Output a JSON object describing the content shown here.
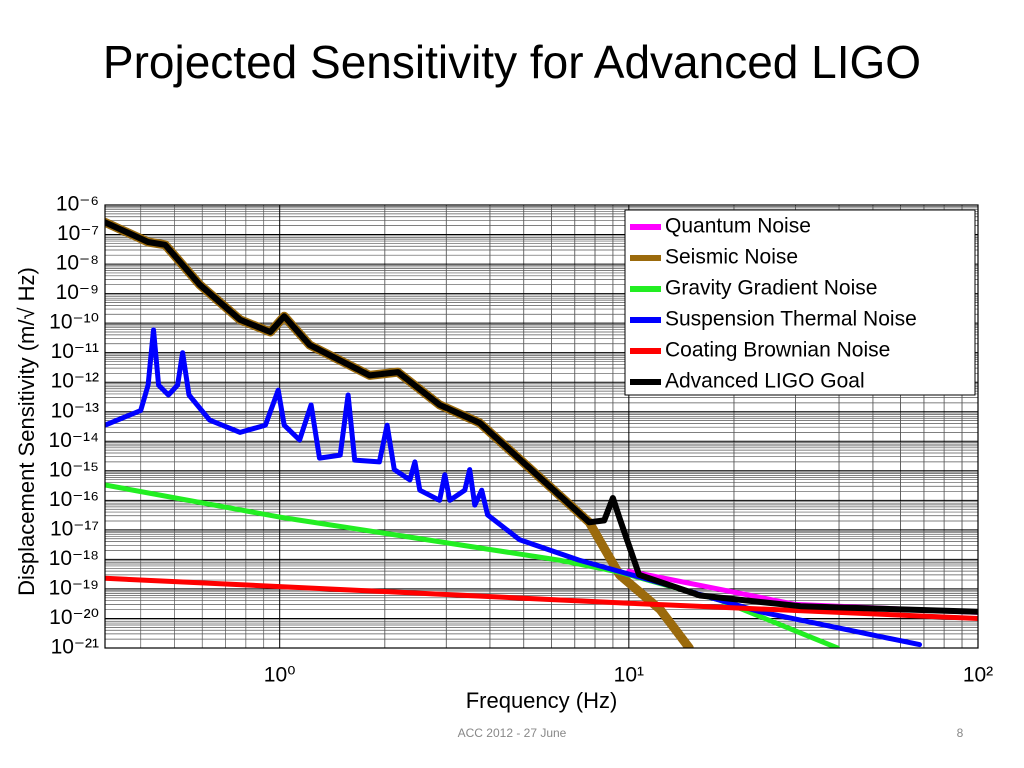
{
  "slide": {
    "title": "Projected Sensitivity for Advanced LIGO",
    "footer": "ACC 2012 - 27 June",
    "page_number": "8"
  },
  "chart_data": {
    "type": "line",
    "xlabel": "Frequency (Hz)",
    "ylabel": "Displacement Sensitivity (m/√ Hz)",
    "xscale": "log",
    "yscale": "log",
    "grid": true,
    "legend": "upper right",
    "xlim": [
      0.316,
      100
    ],
    "ylim": [
      1e-21,
      1e-06
    ],
    "xticks": [
      {
        "value": 1,
        "label": "10⁰"
      },
      {
        "value": 10,
        "label": "10¹"
      },
      {
        "value": 100,
        "label": "10²"
      }
    ],
    "yticks": [
      {
        "value": 1e-21,
        "label": "10⁻²¹"
      },
      {
        "value": 1e-20,
        "label": "10⁻²⁰"
      },
      {
        "value": 1e-19,
        "label": "10⁻¹⁹"
      },
      {
        "value": 1e-18,
        "label": "10⁻¹⁸"
      },
      {
        "value": 1e-17,
        "label": "10⁻¹⁷"
      },
      {
        "value": 1e-16,
        "label": "10⁻¹⁶"
      },
      {
        "value": 1e-15,
        "label": "10⁻¹⁵"
      },
      {
        "value": 1e-14,
        "label": "10⁻¹⁴"
      },
      {
        "value": 1e-13,
        "label": "10⁻¹³"
      },
      {
        "value": 1e-12,
        "label": "10⁻¹²"
      },
      {
        "value": 1e-11,
        "label": "10⁻¹¹"
      },
      {
        "value": 1e-10,
        "label": "10⁻¹⁰"
      },
      {
        "value": 1e-09,
        "label": "10⁻⁹"
      },
      {
        "value": 1e-08,
        "label": "10⁻⁸"
      },
      {
        "value": 1e-07,
        "label": "10⁻⁷"
      },
      {
        "value": 1e-06,
        "label": "10⁻⁶"
      }
    ],
    "series": [
      {
        "name": "Quantum Noise",
        "color": "#ff00ff",
        "x": [
          10,
          30,
          100
        ],
        "values": [
          4e-19,
          3e-20,
          1.6e-20
        ]
      },
      {
        "name": "Seismic Noise",
        "color": "#9b6a0c",
        "x": [
          0.316,
          0.42,
          0.47,
          0.59,
          0.77,
          0.94,
          1.03,
          1.22,
          1.81,
          2.18,
          2.87,
          3.74,
          7.7,
          9.4,
          12.3,
          14.9
        ],
        "values": [
          2.6e-07,
          5.6e-08,
          4.5e-08,
          2e-09,
          1.3e-10,
          5e-11,
          1.7e-10,
          1.8e-11,
          1.7e-12,
          2.2e-12,
          1.7e-13,
          4.2e-14,
          1.8e-17,
          3e-19,
          2e-20,
          1e-21
        ]
      },
      {
        "name": "Gravity Gradient Noise",
        "color": "#22ee22",
        "x": [
          0.316,
          1,
          6.3,
          9.4,
          18.2,
          39.6
        ],
        "values": [
          3.3e-16,
          2.7e-17,
          9.5e-19,
          3.7e-19,
          4.2e-20,
          1e-21
        ]
      },
      {
        "name": "Suspension Thermal Noise",
        "color": "#0000ff",
        "x": [
          0.316,
          0.4,
          0.42,
          0.435,
          0.45,
          0.48,
          0.51,
          0.527,
          0.55,
          0.63,
          0.77,
          0.91,
          0.99,
          1.03,
          1.14,
          1.23,
          1.3,
          1.49,
          1.57,
          1.64,
          1.93,
          2.03,
          2.13,
          2.36,
          2.44,
          2.52,
          2.87,
          2.97,
          3.07,
          3.39,
          3.5,
          3.62,
          3.79,
          3.94,
          4.87,
          7.2,
          11.5,
          23.7,
          68
        ],
        "values": [
          3.5e-14,
          1.1e-13,
          8e-13,
          5.9e-11,
          8e-13,
          3.7e-13,
          8e-13,
          1e-11,
          3.7e-13,
          5.2e-14,
          2e-14,
          3.5e-14,
          5.4e-13,
          3.5e-14,
          1.1e-14,
          1.7e-13,
          2.7e-15,
          3.4e-15,
          3.7e-13,
          2.3e-15,
          2e-15,
          3.5e-14,
          1.1e-15,
          4.9e-16,
          2e-15,
          2.2e-16,
          1e-16,
          7.3e-16,
          1e-16,
          2.2e-16,
          1.1e-15,
          6.9e-17,
          2.2e-16,
          3.2e-17,
          4.6e-18,
          9.5e-19,
          2e-19,
          1.7e-20,
          1.3e-21
        ]
      },
      {
        "name": "Coating Brownian Noise",
        "color": "#ff0000",
        "x": [
          0.316,
          10,
          100
        ],
        "values": [
          2.3e-19,
          3.3e-20,
          1e-20
        ]
      },
      {
        "name": "Advanced LIGO Goal",
        "color": "#000000",
        "x": [
          0.316,
          0.42,
          0.47,
          0.59,
          0.77,
          0.94,
          1.03,
          1.22,
          1.81,
          2.18,
          2.87,
          3.74,
          7.7,
          8.5,
          9.0,
          9.4,
          10.7,
          16,
          31,
          100
        ],
        "values": [
          2.6e-07,
          5.6e-08,
          4.5e-08,
          2e-09,
          1.3e-10,
          5e-11,
          1.7e-10,
          1.8e-11,
          1.7e-12,
          2.2e-12,
          1.7e-13,
          4.2e-14,
          1.8e-17,
          2.1e-17,
          1.2e-16,
          2.5e-17,
          3e-19,
          6e-20,
          2.6e-20,
          1.7e-20
        ]
      }
    ]
  }
}
